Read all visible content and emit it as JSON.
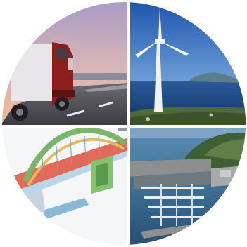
{
  "collage": {
    "quadrants": [
      {
        "subject": "truck-on-highway"
      },
      {
        "subject": "wind-turbine-by-sea"
      },
      {
        "subject": "arch-bridge-3d-model"
      },
      {
        "subject": "harbor-marina-aerial"
      }
    ],
    "colors": {
      "sky_dusk_top": "#b9a4c8",
      "sky_dusk_bottom": "#f2b38a",
      "truck_red": "#8c1f1c",
      "sky_blue": "#2f66b8",
      "sea_blue": "#1f4f8f",
      "bridge_green": "#7ab56a",
      "bridge_red": "#d9463c",
      "harbor_water": "#2c5f88",
      "divider": "#ffffff"
    }
  }
}
